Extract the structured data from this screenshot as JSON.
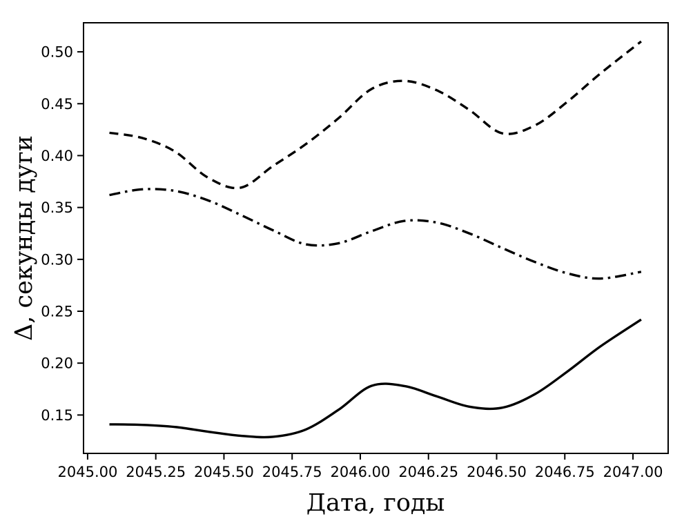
{
  "figure": {
    "background": "#ffffff",
    "line_color": "#000000"
  },
  "chart_data": {
    "type": "line",
    "title": "",
    "xlabel": "Дата, годы",
    "ylabel": "Δ, секунды дуги",
    "xlim": [
      2044.985,
      2047.129
    ],
    "ylim": [
      0.113,
      0.528
    ],
    "grid": false,
    "legend": "none",
    "xtick_labels": [
      "2045.00",
      "2045.25",
      "2045.50",
      "2045.75",
      "2046.00",
      "2046.25",
      "2046.50",
      "2046.75",
      "2047.00"
    ],
    "xtick_values": [
      2045.0,
      2045.25,
      2045.5,
      2045.75,
      2046.0,
      2046.25,
      2046.5,
      2046.75,
      2047.0
    ],
    "ytick_labels": [
      "0.15",
      "0.20",
      "0.25",
      "0.30",
      "0.35",
      "0.40",
      "0.45",
      "0.50"
    ],
    "ytick_values": [
      0.15,
      0.2,
      0.25,
      0.3,
      0.35,
      0.4,
      0.45,
      0.5
    ],
    "x": [
      2045.08,
      2045.2,
      2045.32,
      2045.44,
      2045.56,
      2045.68,
      2045.8,
      2045.92,
      2046.04,
      2046.16,
      2046.28,
      2046.4,
      2046.52,
      2046.64,
      2046.76,
      2046.88,
      2047.03
    ],
    "series": [
      {
        "name": "dashed-upper-curve",
        "linestyle": "dashed",
        "color": "#000000",
        "values": [
          0.422,
          0.417,
          0.404,
          0.379,
          0.369,
          0.39,
          0.411,
          0.436,
          0.464,
          0.472,
          0.463,
          0.444,
          0.4215,
          0.429,
          0.452,
          0.479,
          0.51
        ]
      },
      {
        "name": "dashdot-middle-curve",
        "linestyle": "dashdot",
        "color": "#000000",
        "values": [
          0.362,
          0.3675,
          0.366,
          0.357,
          0.343,
          0.328,
          0.3145,
          0.3155,
          0.327,
          0.337,
          0.3355,
          0.325,
          0.311,
          0.2975,
          0.2865,
          0.2815,
          0.288
        ]
      },
      {
        "name": "solid-lower-curve",
        "linestyle": "solid",
        "color": "#000000",
        "values": [
          0.141,
          0.1405,
          0.1385,
          0.134,
          0.13,
          0.129,
          0.136,
          0.155,
          0.178,
          0.178,
          0.168,
          0.158,
          0.157,
          0.17,
          0.192,
          0.216,
          0.242
        ]
      }
    ]
  }
}
